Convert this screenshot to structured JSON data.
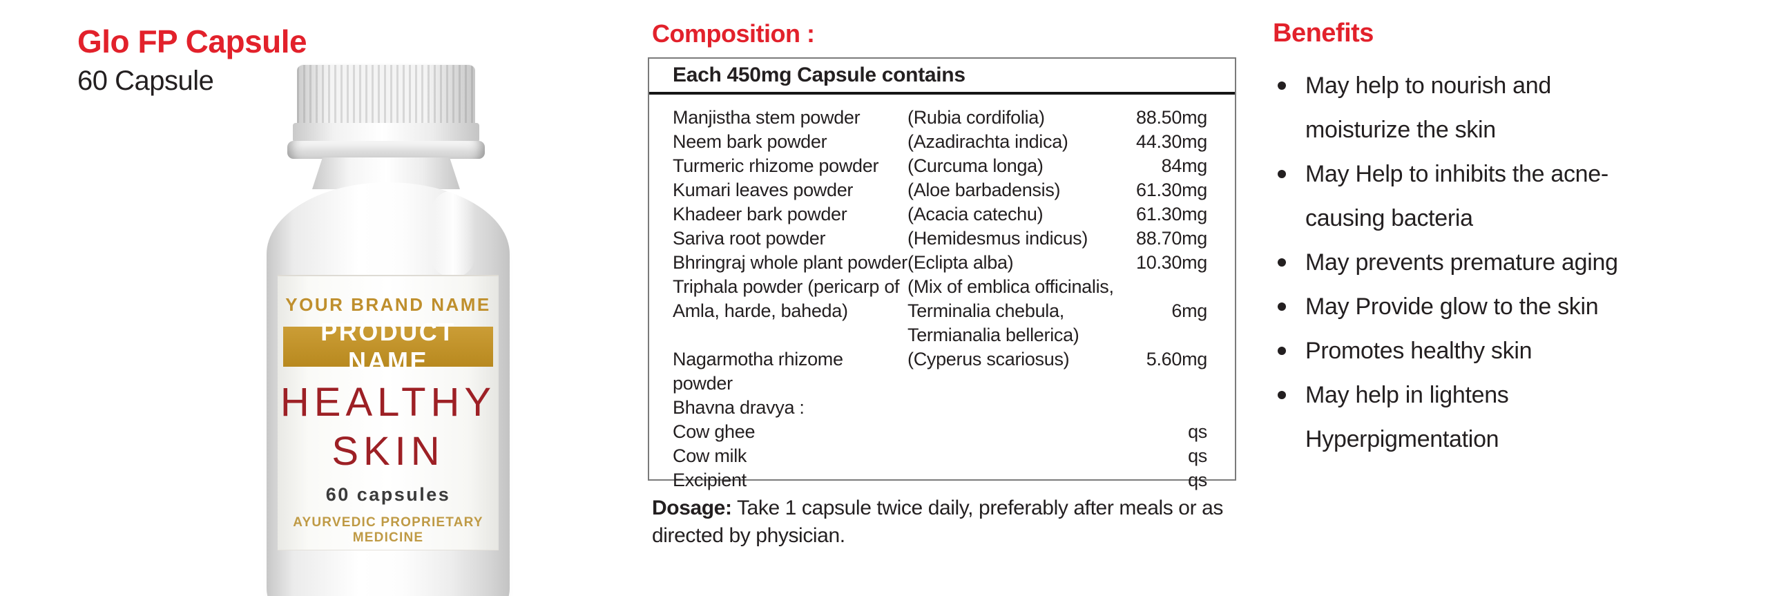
{
  "product": {
    "title": "Glo FP Capsule",
    "subtitle": "60 Capsule"
  },
  "bottle_label": {
    "brand": "YOUR BRAND NAME",
    "product_name": "PRODUCT NAME",
    "title_line1": "HEALTHY",
    "title_line2": "SKIN",
    "count": "60 capsules",
    "tagline": "AYURVEDIC PROPRIETARY MEDICINE"
  },
  "composition": {
    "heading": "Composition :",
    "table_header": "Each 450mg Capsule contains",
    "rows": [
      {
        "name": "Manjistha stem powder",
        "latin": "(Rubia cordifolia)",
        "amount": "88.50mg"
      },
      {
        "name": "Neem bark powder",
        "latin": "(Azadirachta indica)",
        "amount": "44.30mg"
      },
      {
        "name": "Turmeric rhizome powder",
        "latin": "(Curcuma longa)",
        "amount": "84mg"
      },
      {
        "name": "Kumari leaves powder",
        "latin": "(Aloe barbadensis)",
        "amount": "61.30mg"
      },
      {
        "name": "Khadeer bark powder",
        "latin": "(Acacia catechu)",
        "amount": "61.30mg"
      },
      {
        "name": "Sariva root powder",
        "latin": "(Hemidesmus indicus)",
        "amount": "88.70mg"
      },
      {
        "name": "Bhringraj whole plant powder",
        "latin": "(Eclipta alba)",
        "amount": "10.30mg"
      },
      {
        "name": "Triphala powder (pericarp of\nAmla, harde, baheda)",
        "latin": "(Mix of emblica officinalis,\nTerminalia chebula,\nTermianalia bellerica)",
        "amount": "\n6mg"
      },
      {
        "name": "Nagarmotha rhizome powder",
        "latin": "(Cyperus scariosus)",
        "amount": "5.60mg"
      },
      {
        "name": "Bhavna dravya :",
        "latin": "",
        "amount": ""
      },
      {
        "name": "Cow ghee",
        "latin": "",
        "amount": "qs"
      },
      {
        "name": "Cow milk",
        "latin": "",
        "amount": "qs"
      },
      {
        "name": "Excipient",
        "latin": "",
        "amount": "qs"
      }
    ]
  },
  "dosage": {
    "label": "Dosage:",
    "text": " Take 1 capsule twice daily, preferably after meals or as directed by physician."
  },
  "benefits": {
    "heading": "Benefits",
    "items": [
      "May help to nourish and moisturize the skin",
      "May Help to inhibits the acne-causing bacteria",
      "May prevents premature aging",
      "May Provide glow to the skin",
      "Promotes healthy skin",
      "May help in lightens Hyperpigmentation"
    ]
  },
  "colors": {
    "accent_red": "#e2212b",
    "label_dark_red": "#9d2025",
    "gold": "#c0912f",
    "text_black": "#231f20"
  }
}
